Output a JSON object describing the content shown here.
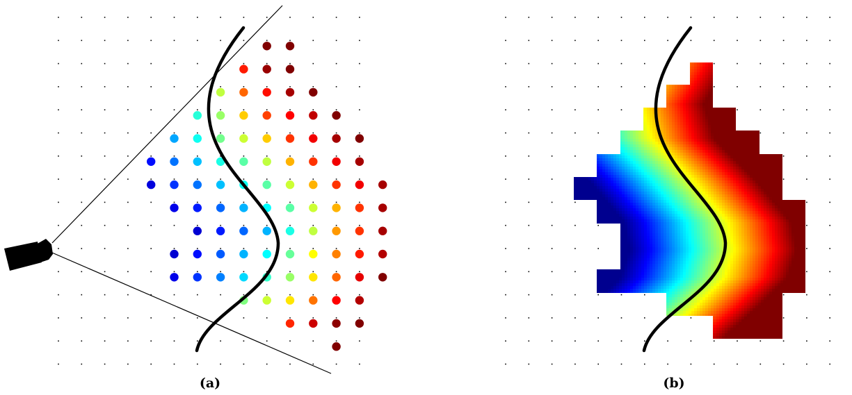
{
  "panels": [
    {
      "caption": "(a)",
      "grid": "dotted-lattice",
      "contents": [
        "camera-icon",
        "view-frustum",
        "surface-curve",
        "colored-sample-points"
      ]
    },
    {
      "caption": "(b)",
      "grid": "dotted-lattice",
      "contents": [
        "surface-curve",
        "interpolated-color-field"
      ]
    }
  ],
  "colormap": "jet",
  "colormap_stops": [
    "#00008f",
    "#0000ff",
    "#0080ff",
    "#00ffff",
    "#80ff80",
    "#ffff00",
    "#ff8000",
    "#ff0000",
    "#800000"
  ],
  "colored_points": [
    [
      10,
      2,
      8
    ],
    [
      11,
      2,
      8
    ],
    [
      9,
      3,
      6.8
    ],
    [
      10,
      3,
      7.8
    ],
    [
      11,
      3,
      8.2
    ],
    [
      8,
      4,
      4.5
    ],
    [
      9,
      4,
      6.2
    ],
    [
      10,
      4,
      6.9
    ],
    [
      11,
      4,
      7.7
    ],
    [
      12,
      4,
      8.4
    ],
    [
      7,
      5,
      3.3
    ],
    [
      8,
      5,
      4.2
    ],
    [
      9,
      5,
      5.4
    ],
    [
      10,
      5,
      6.5
    ],
    [
      11,
      5,
      7
    ],
    [
      12,
      5,
      7.5
    ],
    [
      13,
      5,
      8.5
    ],
    [
      6,
      6,
      2.3
    ],
    [
      7,
      6,
      3.1
    ],
    [
      8,
      6,
      3.9
    ],
    [
      9,
      6,
      4.6
    ],
    [
      10,
      6,
      5.4
    ],
    [
      11,
      6,
      6.6
    ],
    [
      12,
      6,
      7.1
    ],
    [
      13,
      6,
      7.7
    ],
    [
      14,
      6,
      8.1
    ],
    [
      5,
      7,
      1.1
    ],
    [
      6,
      7,
      1.9
    ],
    [
      7,
      7,
      2.5
    ],
    [
      8,
      7,
      3.2
    ],
    [
      9,
      7,
      3.7
    ],
    [
      10,
      7,
      4.5
    ],
    [
      11,
      7,
      5.6
    ],
    [
      12,
      7,
      6.6
    ],
    [
      13,
      7,
      7.1
    ],
    [
      14,
      7,
      7.7
    ],
    [
      5,
      8,
      0.7
    ],
    [
      6,
      8,
      1.4
    ],
    [
      7,
      8,
      1.9
    ],
    [
      8,
      8,
      2.5
    ],
    [
      9,
      8,
      3.1
    ],
    [
      10,
      8,
      3.7
    ],
    [
      11,
      8,
      4.6
    ],
    [
      12,
      8,
      5.6
    ],
    [
      13,
      8,
      6.6
    ],
    [
      14,
      8,
      7.1
    ],
    [
      15,
      8,
      7.7
    ],
    [
      6,
      9,
      0.8
    ],
    [
      7,
      9,
      1.2
    ],
    [
      8,
      9,
      1.8
    ],
    [
      9,
      9,
      2.4
    ],
    [
      10,
      9,
      3
    ],
    [
      11,
      9,
      3.7
    ],
    [
      12,
      9,
      4.6
    ],
    [
      13,
      9,
      5.6
    ],
    [
      14,
      9,
      6.6
    ],
    [
      15,
      9,
      7.7
    ],
    [
      7,
      10,
      0.6
    ],
    [
      8,
      10,
      1.2
    ],
    [
      9,
      10,
      1.8
    ],
    [
      10,
      10,
      2.4
    ],
    [
      11,
      10,
      3.2
    ],
    [
      12,
      10,
      4.5
    ],
    [
      13,
      10,
      5.8
    ],
    [
      14,
      10,
      6.6
    ],
    [
      15,
      10,
      7.7
    ],
    [
      6,
      11,
      0.6
    ],
    [
      7,
      11,
      1.1
    ],
    [
      8,
      11,
      1.7
    ],
    [
      9,
      11,
      2.4
    ],
    [
      10,
      11,
      3
    ],
    [
      11,
      11,
      3.8
    ],
    [
      12,
      11,
      5
    ],
    [
      13,
      11,
      6
    ],
    [
      14,
      11,
      6.8
    ],
    [
      15,
      11,
      7.6
    ],
    [
      6,
      12,
      0.8
    ],
    [
      7,
      12,
      1.4
    ],
    [
      8,
      12,
      2
    ],
    [
      9,
      12,
      2.7
    ],
    [
      10,
      12,
      3.4
    ],
    [
      11,
      12,
      4.2
    ],
    [
      12,
      12,
      5.2
    ],
    [
      13,
      12,
      6.2
    ],
    [
      14,
      12,
      7.2
    ],
    [
      15,
      12,
      8.2
    ],
    [
      9,
      13,
      4
    ],
    [
      10,
      13,
      4.6
    ],
    [
      11,
      13,
      5.2
    ],
    [
      12,
      13,
      6.1
    ],
    [
      13,
      13,
      7
    ],
    [
      14,
      13,
      7.6
    ],
    [
      11,
      14,
      6.7
    ],
    [
      12,
      14,
      7.4
    ],
    [
      13,
      14,
      7.9
    ],
    [
      14,
      14,
      8.4
    ],
    [
      13,
      15,
      8.2
    ]
  ]
}
